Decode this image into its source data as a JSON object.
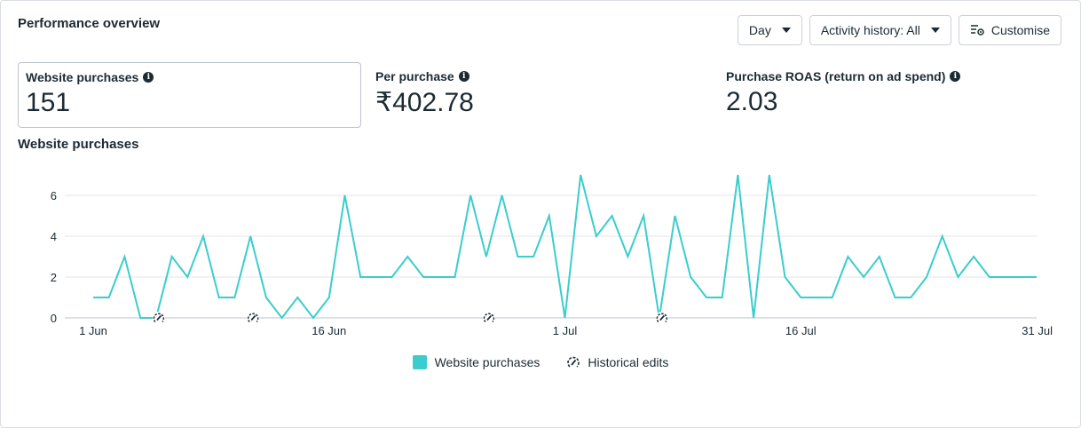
{
  "header": {
    "title": "Performance overview",
    "day_label": "Day",
    "activity_label": "Activity history: All",
    "customise_label": "Customise"
  },
  "metrics": [
    {
      "label": "Website purchases",
      "value": "151"
    },
    {
      "label": "Per purchase",
      "value": "₹402.78"
    },
    {
      "label": "Purchase ROAS (return on ad spend)",
      "value": "2.03"
    }
  ],
  "colors": {
    "line": "#3bcdcd",
    "grid": "#e4e6eb",
    "text": "#1c2b33"
  },
  "chart_data": {
    "type": "line",
    "title": "Website purchases",
    "xlabel": "",
    "ylabel": "",
    "ylim": [
      0,
      7
    ],
    "y_ticks": [
      0,
      2,
      4,
      6
    ],
    "x_ticks": [
      {
        "label": "1 Jun",
        "index": 0
      },
      {
        "label": "16 Jun",
        "index": 15
      },
      {
        "label": "1 Jul",
        "index": 30
      },
      {
        "label": "16 Jul",
        "index": 45
      },
      {
        "label": "31 Jul",
        "index": 60
      }
    ],
    "series": [
      {
        "name": "Website purchases",
        "values": [
          1,
          1,
          3,
          0,
          0,
          3,
          2,
          4,
          1,
          1,
          4,
          1,
          0,
          1,
          0,
          1,
          6,
          2,
          2,
          2,
          3,
          2,
          2,
          2,
          6,
          3,
          6,
          3,
          3,
          5,
          0,
          7,
          4,
          5,
          3,
          5,
          0,
          5,
          2,
          1,
          1,
          7,
          0,
          7,
          2,
          1,
          1,
          1,
          3,
          2,
          3,
          1,
          1,
          2,
          4,
          2,
          3,
          2,
          2,
          2,
          2
        ]
      }
    ],
    "historical_edit_indices": [
      4,
      10,
      25,
      36
    ],
    "legend": [
      "Website purchases",
      "Historical edits"
    ]
  }
}
